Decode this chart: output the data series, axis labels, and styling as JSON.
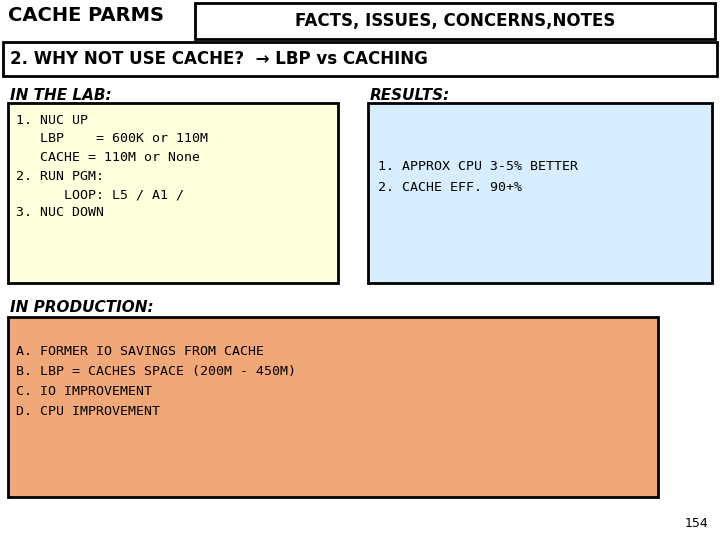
{
  "title_left": "CACHE PARMS",
  "title_right": "FACTS, ISSUES, CONCERNS,NOTES",
  "subtitle": "2. WHY NOT USE CACHE?  → LBP vs CACHING",
  "lab_header": "IN THE LAB:",
  "lab_box_color": "#FFFFDD",
  "lab_text": "1. NUC UP\n   LBP    = 600K or 110M\n   CACHE = 110M or None\n2. RUN PGM:\n      LOOP: L5 / A1 /\n3. NUC DOWN",
  "results_header": "RESULTS:",
  "results_box_color": "#D6EEFF",
  "results_text": "1. APPROX CPU 3-5% BETTER\n2. CACHE EFF. 90+%",
  "production_header": "IN PRODUCTION:",
  "production_box_color": "#F0A878",
  "production_text": "A. FORMER IO SAVINGS FROM CACHE\nB. LBP = CACHES SPACE (200M - 450M)\nC. IO IMPROVEMENT\nD. CPU IMPROVEMENT",
  "page_number": "154",
  "bg_color": "#FFFFFF"
}
